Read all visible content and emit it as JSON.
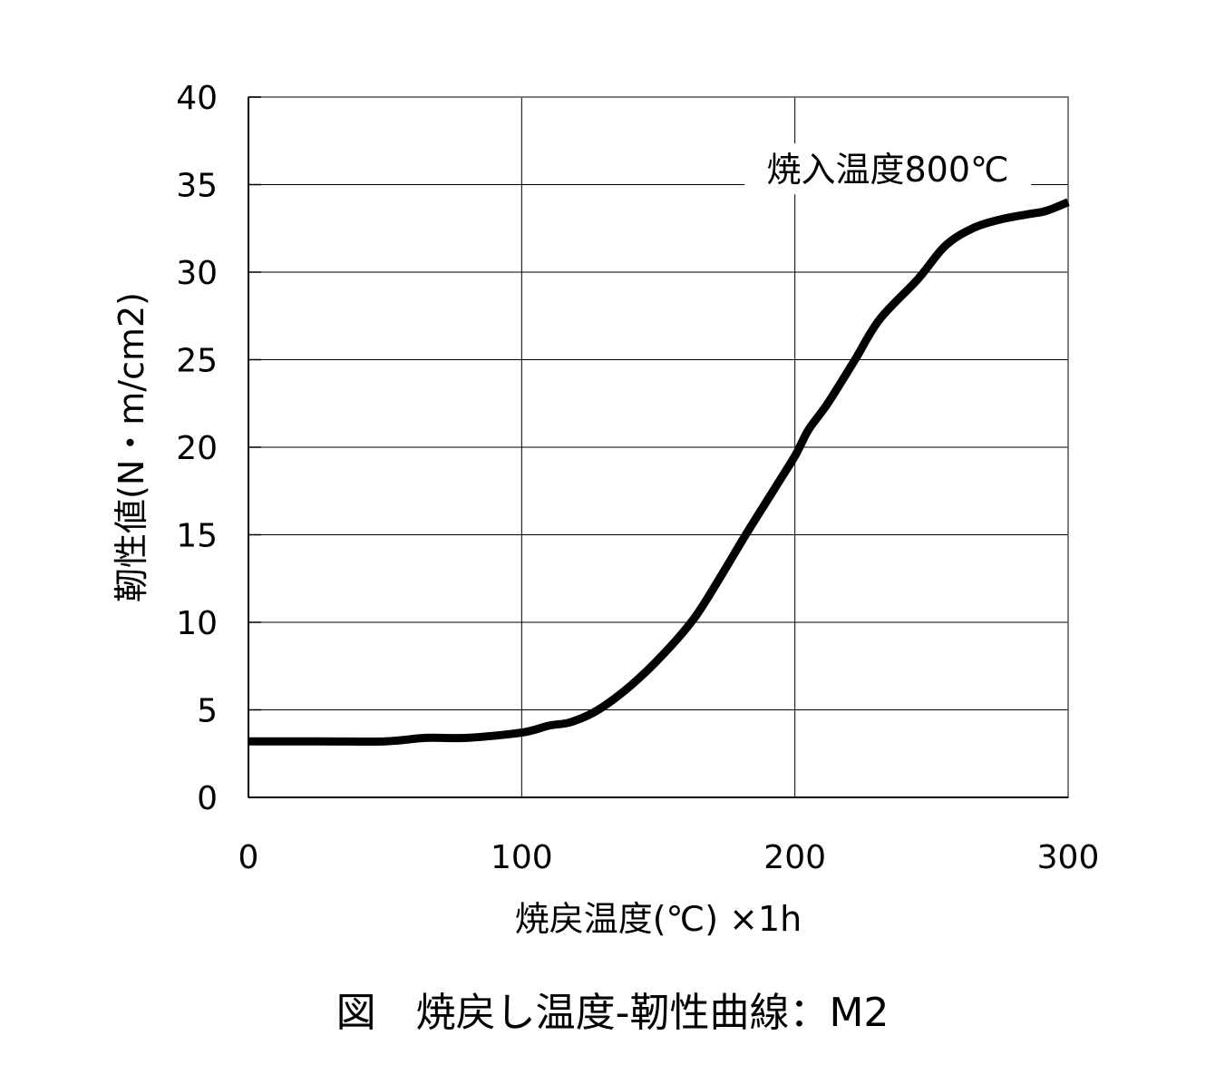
{
  "chart_data": {
    "type": "line",
    "xlabel": "焼戻温度(℃) ×1h",
    "ylabel": "靭性値(N・m/cm2)",
    "xlim": [
      0,
      300
    ],
    "ylim": [
      0,
      40
    ],
    "x_ticks": [
      "0",
      "100",
      "200",
      "300"
    ],
    "y_ticks": [
      "0",
      "5",
      "10",
      "15",
      "20",
      "25",
      "30",
      "35",
      "40"
    ],
    "x_tick_values": [
      0,
      100,
      200,
      300
    ],
    "y_tick_values": [
      0,
      5,
      10,
      15,
      20,
      25,
      30,
      35,
      40
    ],
    "grid": true,
    "legend": "none",
    "series": [
      {
        "name": "焼入温度800℃",
        "color": "#000000",
        "x": [
          0,
          25,
          50,
          65,
          80,
          100,
          110,
          118,
          128,
          140,
          152,
          163,
          172,
          182,
          192,
          200,
          205,
          212,
          222,
          231,
          245,
          255,
          265,
          275,
          285,
          292,
          300
        ],
        "y": [
          3.2,
          3.2,
          3.2,
          3.4,
          3.4,
          3.7,
          4.1,
          4.3,
          5.0,
          6.4,
          8.2,
          10.2,
          12.4,
          15.0,
          17.5,
          19.5,
          21.0,
          22.5,
          25.0,
          27.3,
          29.6,
          31.5,
          32.5,
          33.0,
          33.3,
          33.5,
          34.0
        ]
      }
    ],
    "annotations": [
      {
        "text": "焼入温度800℃",
        "x": 234,
        "y": 35.9
      }
    ]
  },
  "caption": "図　焼戻し温度-靭性曲線：M2"
}
